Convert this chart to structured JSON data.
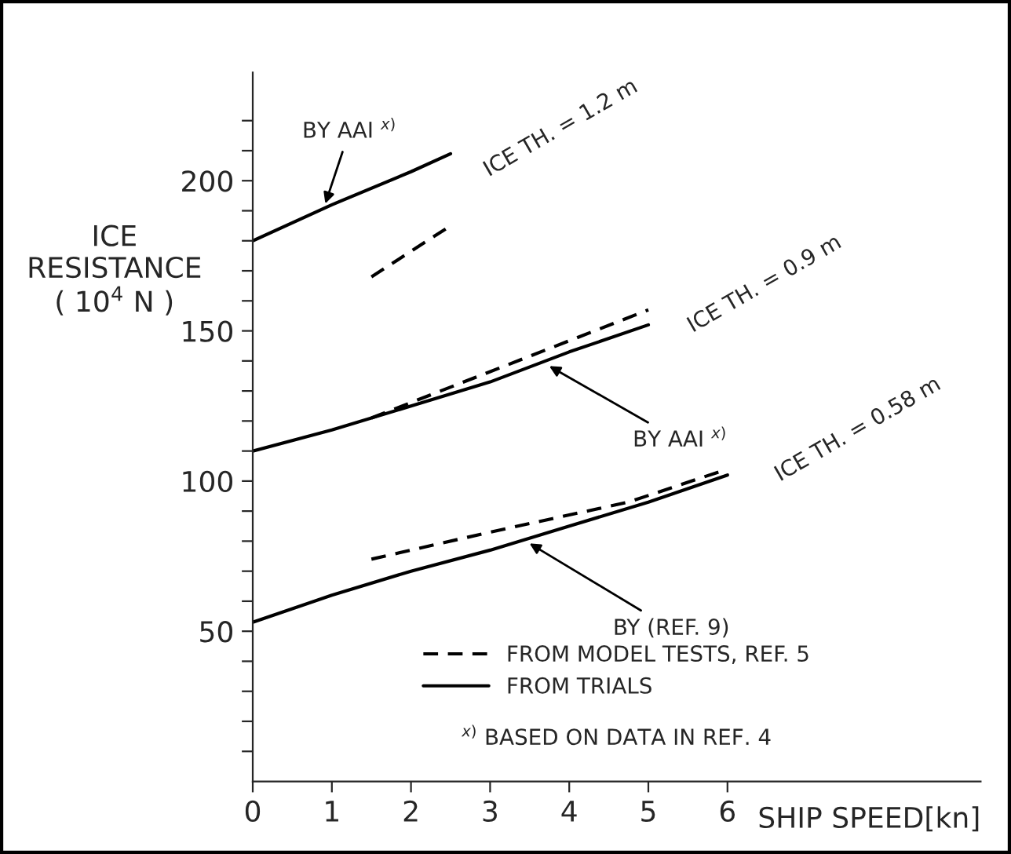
{
  "chart_data": {
    "type": "line",
    "xlabel": "SHIP SPEED[kn]",
    "ylabel": "ICE\nRESISTANCE\n( 10$^{4}$ N )",
    "xlim": [
      0,
      9.2
    ],
    "ylim": [
      0,
      236
    ],
    "xticks": [
      0,
      1,
      2,
      3,
      4,
      5,
      6
    ],
    "yticks": [
      {
        "value": 10,
        "label": null
      },
      {
        "value": 20,
        "label": null
      },
      {
        "value": 30,
        "label": null
      },
      {
        "value": 40,
        "label": null
      },
      50,
      {
        "value": 60,
        "label": null
      },
      {
        "value": 70,
        "label": null
      },
      {
        "value": 80,
        "label": null
      },
      {
        "value": 90,
        "label": null
      },
      100,
      {
        "value": 110,
        "label": null
      },
      {
        "value": 120,
        "label": null
      },
      {
        "value": 130,
        "label": null
      },
      {
        "value": 140,
        "label": null
      },
      150,
      {
        "value": 160,
        "label": null
      },
      {
        "value": 170,
        "label": null
      },
      {
        "value": 180,
        "label": null
      },
      {
        "value": 190,
        "label": null
      },
      200,
      {
        "value": 210,
        "label": null
      },
      {
        "value": 220,
        "label": null
      }
    ],
    "series": [
      {
        "name": "FROM MODEL TESTS, REF. 5",
        "color": "#000000",
        "line_style": "dashed",
        "x": [
          1.5,
          2.5
        ],
        "values": [
          168,
          185
        ]
      },
      {
        "name": "FROM TRIALS",
        "color": "#000000",
        "line_style": "solid",
        "x": [
          0,
          1,
          2,
          2.5
        ],
        "values": [
          180,
          192,
          203,
          209
        ]
      },
      {
        "color": "#000000",
        "line_style": "solid",
        "x": [
          0,
          1,
          2,
          3,
          4,
          5
        ],
        "values": [
          110,
          117,
          125,
          133,
          143,
          152
        ]
      },
      {
        "color": "#000000",
        "line_style": "dashed",
        "x": [
          1.5,
          5
        ],
        "values": [
          121,
          157
        ]
      },
      {
        "color": "#000000",
        "line_style": "solid",
        "x": [
          0,
          1,
          2,
          3,
          4,
          5,
          6
        ],
        "values": [
          53,
          62,
          70,
          77,
          85,
          93,
          102
        ]
      },
      {
        "color": "#000000",
        "line_style": "dashed",
        "x": [
          1.5,
          3,
          4.75,
          6
        ],
        "values": [
          74,
          83,
          93,
          104
        ]
      }
    ],
    "legend": "bottom",
    "grid": false,
    "annotations": [
      {
        "text": "BY AAI $^{x)}$",
        "x": 0.9,
        "y": 191
      },
      {
        "text": "BY AAI $^{x)}$",
        "x": 3.7,
        "y": 139
      },
      {
        "text": "BY (REF. 9)",
        "x": 3.45,
        "y": 80
      },
      "ICE TH. = 1.2 m",
      "ICE TH. = 0.9 m",
      "ICE TH. = 0.58 m",
      "$^{x)}$ BASED ON DATA IN REF. 4"
    ]
  }
}
